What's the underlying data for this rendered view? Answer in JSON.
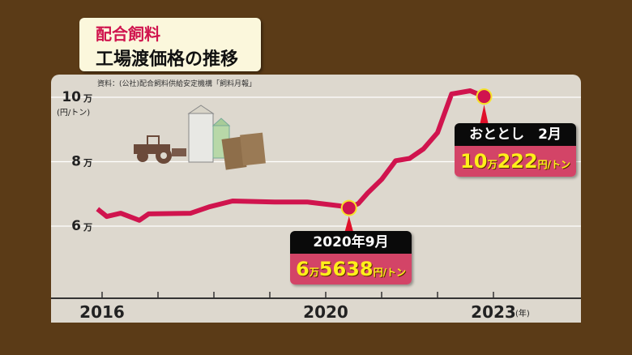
{
  "title": {
    "line1": "配合飼料",
    "line2": "工場渡価格の推移"
  },
  "source": "資料：(公社)配合飼料供給安定機構「飼料月報」",
  "callouts": [
    {
      "header": "2020年9月",
      "value_man": "6",
      "man": "万",
      "value_rest": "5638",
      "unit": "円/トン"
    },
    {
      "header": "おととし　2月",
      "value_man": "10",
      "man": "万",
      "value_rest": "222",
      "unit": "円/トン"
    }
  ],
  "chart_data": {
    "type": "line",
    "title": "配合飼料 工場渡価格の推移",
    "ylabel": "(円/トン)",
    "ylim": [
      60000,
      100000
    ],
    "y_ticks": [
      {
        "value": 100000,
        "label": "10",
        "unit": "万"
      },
      {
        "value": 80000,
        "label": "8",
        "unit": "万"
      },
      {
        "value": 60000,
        "label": "6",
        "unit": "万"
      }
    ],
    "x_tick_labels": [
      "2016",
      "2020",
      "2023"
    ],
    "x_unit": "(年)",
    "grid": true,
    "series": [
      {
        "color": "#d0144e",
        "points": [
          [
            "2016-03",
            65300
          ],
          [
            "2016-05",
            63000
          ],
          [
            "2016-08",
            64000
          ],
          [
            "2016-12",
            61800
          ],
          [
            "2017-02",
            63800
          ],
          [
            "2017-11",
            64000
          ],
          [
            "2018-03",
            66000
          ],
          [
            "2018-08",
            67800
          ],
          [
            "2019-05",
            67500
          ],
          [
            "2019-12",
            67500
          ],
          [
            "2020-07",
            66300
          ],
          [
            "2020-09",
            65638
          ],
          [
            "2020-11",
            67000
          ],
          [
            "2021-01",
            70300
          ],
          [
            "2021-04",
            74500
          ],
          [
            "2021-07",
            80300
          ],
          [
            "2021-10",
            81000
          ],
          [
            "2022-01",
            84000
          ],
          [
            "2022-04",
            89000
          ],
          [
            "2022-07",
            101000
          ],
          [
            "2022-11",
            102000
          ],
          [
            "2023-02",
            100222
          ]
        ]
      }
    ],
    "highlights": [
      [
        "2020-09",
        65638
      ],
      [
        "2023-02",
        100222
      ]
    ]
  },
  "colors": {
    "background": "#5b3b17",
    "panel": "#ddd8ce",
    "line": "#d0144e",
    "marker_ring": "#f5e22a"
  }
}
